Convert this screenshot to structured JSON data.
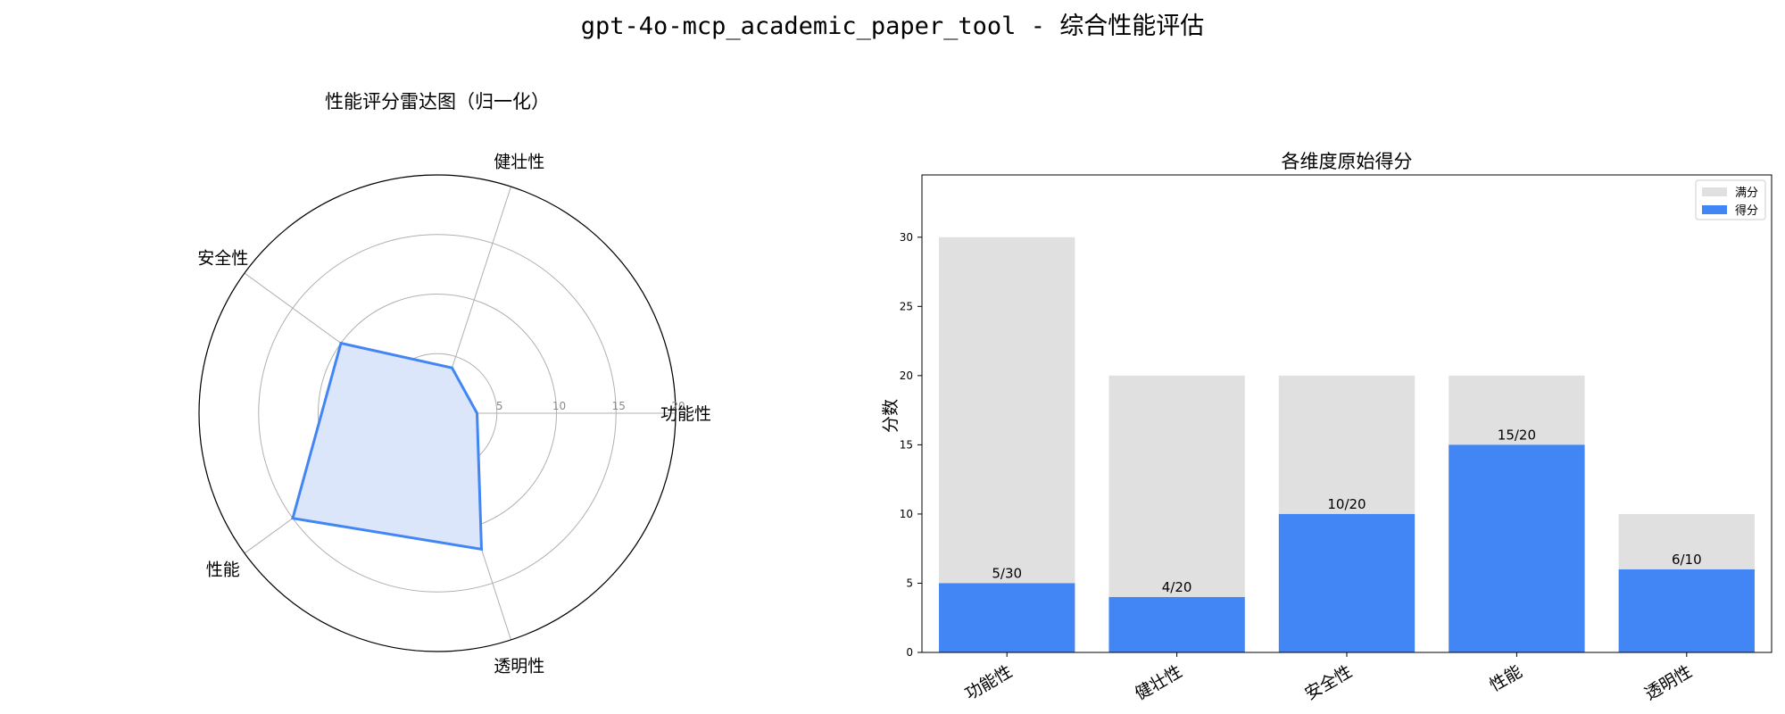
{
  "title": "gpt-4o-mcp_academic_paper_tool - 综合性能评估",
  "chart_data": [
    {
      "type": "radar",
      "title": "性能评分雷达图（归一化）",
      "axes": [
        "功能性",
        "健壮性",
        "安全性",
        "性能",
        "透明性"
      ],
      "values": [
        3.33,
        4,
        10,
        15,
        12
      ],
      "r_ticks": [
        5,
        10,
        15,
        20
      ],
      "r_tick_labels": [
        "5",
        "10",
        "15",
        "20"
      ],
      "r_max": 20,
      "line_color": "#4285f4",
      "fill_color": "#dbe6fb",
      "grid": true
    },
    {
      "type": "bar",
      "title": "各维度原始得分",
      "categories": [
        "功能性",
        "健壮性",
        "安全性",
        "性能",
        "透明性"
      ],
      "series": [
        {
          "name": "满分",
          "values": [
            30,
            20,
            20,
            20,
            10
          ],
          "color": "#e0e0e0"
        },
        {
          "name": "得分",
          "values": [
            5,
            4,
            10,
            15,
            6
          ],
          "color": "#4285f4"
        }
      ],
      "data_labels": [
        "5/30",
        "4/20",
        "10/20",
        "15/20",
        "6/10"
      ],
      "xlabel": "",
      "ylabel": "分数",
      "ylim": [
        0,
        34.5
      ],
      "yticks": [
        0,
        5,
        10,
        15,
        20,
        25,
        30
      ],
      "legend_position": "top-right",
      "grid": false
    }
  ]
}
